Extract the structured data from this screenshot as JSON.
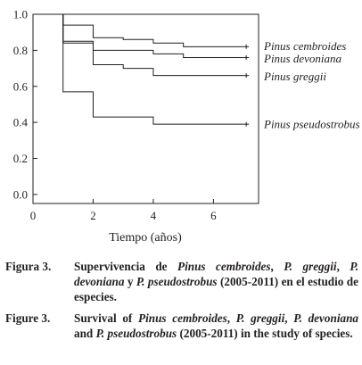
{
  "chart_data": {
    "type": "line",
    "xlabel": "Tiempo (años)",
    "ylabel": "",
    "xlim": [
      0,
      7.5
    ],
    "ylim": [
      0,
      1
    ],
    "xticks": [
      "0",
      "2",
      "4",
      "6"
    ],
    "yticks": [
      "0.0",
      "0.2",
      "0.4",
      "0.6",
      "0.8",
      "1.0"
    ],
    "grid": false,
    "step": true,
    "series": [
      {
        "name": "Pinus cembroides",
        "x": [
          0,
          1,
          2,
          3,
          4,
          5,
          7
        ],
        "y": [
          1.0,
          0.94,
          0.87,
          0.86,
          0.84,
          0.82,
          0.82
        ]
      },
      {
        "name": "Pinus devoniana",
        "x": [
          0,
          1,
          2,
          3,
          4,
          5,
          7
        ],
        "y": [
          1.0,
          0.85,
          0.8,
          0.8,
          0.78,
          0.76,
          0.76
        ]
      },
      {
        "name": "Pinus greggii",
        "x": [
          0,
          1,
          2,
          3,
          4,
          5,
          7
        ],
        "y": [
          1.0,
          0.84,
          0.72,
          0.7,
          0.66,
          0.66,
          0.66
        ]
      },
      {
        "name": "Pinus pseudostrobus",
        "x": [
          0,
          1,
          2,
          3,
          4,
          5,
          7
        ],
        "y": [
          1.0,
          0.57,
          0.43,
          0.43,
          0.39,
          0.39,
          0.39
        ]
      }
    ]
  },
  "caption": {
    "es": {
      "label": "Figura 3.",
      "t1": "Supervivencia de ",
      "s1": "Pinus cembroides",
      "t2": ", ",
      "s2": "P. greggii",
      "t3": ", ",
      "s3": "P. devoniana",
      "t4": " y ",
      "s4": "P. pseudostrobus",
      "t5": " (2005-2011) en el estudio de especies."
    },
    "en": {
      "label": "Figure 3.",
      "t1": "Survival of ",
      "s1": "Pinus cembroides",
      "t2": ", ",
      "s2": "P. greggii",
      "t3": ", ",
      "s3": "P. devoniana",
      "t4": " and ",
      "s4": "P. pseudostrobus",
      "t5": " (2005-2011) in the study of species."
    }
  }
}
